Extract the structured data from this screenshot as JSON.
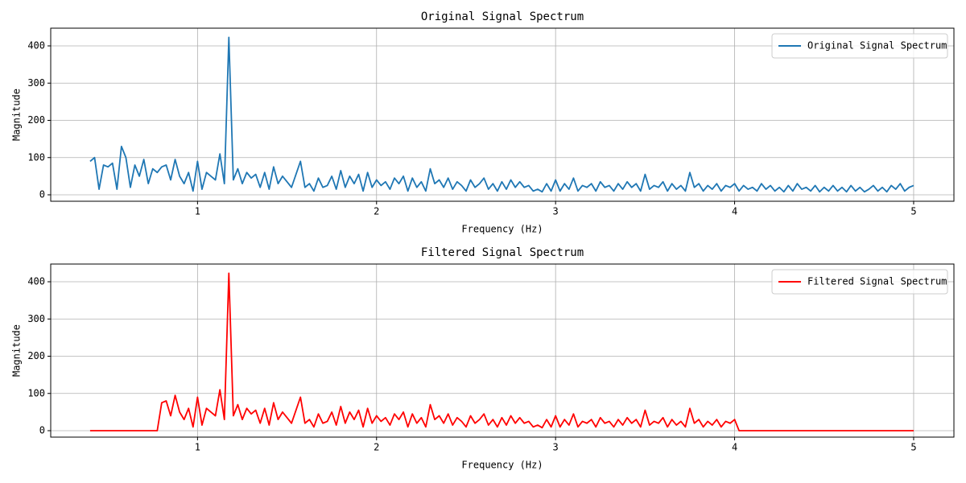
{
  "chart_data": [
    {
      "type": "line",
      "title": "Original Signal Spectrum",
      "xlabel": "Frequency (Hz)",
      "ylabel": "Magnitude",
      "x": [
        0.4,
        0.425,
        0.45,
        0.475,
        0.5,
        0.525,
        0.55,
        0.575,
        0.6,
        0.625,
        0.65,
        0.675,
        0.7,
        0.725,
        0.75,
        0.775,
        0.8,
        0.825,
        0.85,
        0.875,
        0.9,
        0.925,
        0.95,
        0.975,
        1.0,
        1.025,
        1.05,
        1.075,
        1.1,
        1.125,
        1.15,
        1.175,
        1.2,
        1.225,
        1.25,
        1.275,
        1.3,
        1.325,
        1.35,
        1.375,
        1.4,
        1.425,
        1.45,
        1.475,
        1.5,
        1.525,
        1.55,
        1.575,
        1.6,
        1.625,
        1.65,
        1.675,
        1.7,
        1.725,
        1.75,
        1.775,
        1.8,
        1.825,
        1.85,
        1.875,
        1.9,
        1.925,
        1.95,
        1.975,
        2.0,
        2.025,
        2.05,
        2.075,
        2.1,
        2.125,
        2.15,
        2.175,
        2.2,
        2.225,
        2.25,
        2.275,
        2.3,
        2.325,
        2.35,
        2.375,
        2.4,
        2.425,
        2.45,
        2.475,
        2.5,
        2.525,
        2.55,
        2.575,
        2.6,
        2.625,
        2.65,
        2.675,
        2.7,
        2.725,
        2.75,
        2.775,
        2.8,
        2.825,
        2.85,
        2.875,
        2.9,
        2.925,
        2.95,
        2.975,
        3.0,
        3.025,
        3.05,
        3.075,
        3.1,
        3.125,
        3.15,
        3.175,
        3.2,
        3.225,
        3.25,
        3.275,
        3.3,
        3.325,
        3.35,
        3.375,
        3.4,
        3.425,
        3.45,
        3.475,
        3.5,
        3.525,
        3.55,
        3.575,
        3.6,
        3.625,
        3.65,
        3.675,
        3.7,
        3.725,
        3.75,
        3.775,
        3.8,
        3.825,
        3.85,
        3.875,
        3.9,
        3.925,
        3.95,
        3.975,
        4.0,
        4.025,
        4.05,
        4.075,
        4.1,
        4.125,
        4.15,
        4.175,
        4.2,
        4.225,
        4.25,
        4.275,
        4.3,
        4.325,
        4.35,
        4.375,
        4.4,
        4.425,
        4.45,
        4.475,
        4.5,
        4.525,
        4.55,
        4.575,
        4.6,
        4.625,
        4.65,
        4.675,
        4.7,
        4.725,
        4.75,
        4.775,
        4.8,
        4.825,
        4.85,
        4.875,
        4.9,
        4.925,
        4.95,
        4.975,
        5.0
      ],
      "series": [
        {
          "name": "Original Signal Spectrum",
          "color": "#1f77b4",
          "values": [
            90,
            100,
            15,
            80,
            75,
            85,
            15,
            130,
            100,
            20,
            80,
            50,
            95,
            30,
            70,
            60,
            75,
            80,
            40,
            95,
            50,
            30,
            60,
            10,
            90,
            15,
            60,
            50,
            40,
            110,
            30,
            423,
            40,
            70,
            30,
            60,
            45,
            55,
            20,
            60,
            15,
            75,
            30,
            50,
            35,
            20,
            55,
            90,
            20,
            30,
            10,
            45,
            20,
            25,
            50,
            15,
            65,
            20,
            50,
            30,
            55,
            10,
            60,
            20,
            40,
            25,
            35,
            15,
            45,
            30,
            50,
            10,
            45,
            20,
            35,
            10,
            70,
            30,
            40,
            20,
            45,
            15,
            35,
            25,
            10,
            40,
            20,
            30,
            45,
            15,
            30,
            10,
            35,
            15,
            40,
            20,
            35,
            20,
            25,
            10,
            15,
            8,
            30,
            10,
            40,
            10,
            30,
            15,
            45,
            10,
            25,
            20,
            30,
            10,
            35,
            20,
            25,
            10,
            30,
            15,
            35,
            20,
            30,
            10,
            55,
            15,
            25,
            20,
            35,
            10,
            30,
            15,
            25,
            10,
            60,
            20,
            30,
            10,
            25,
            15,
            30,
            10,
            25,
            20,
            30,
            10,
            25,
            15,
            20,
            10,
            30,
            15,
            25,
            10,
            20,
            8,
            25,
            10,
            30,
            15,
            20,
            10,
            25,
            8,
            20,
            10,
            25,
            10,
            20,
            8,
            25,
            10,
            20,
            8,
            15,
            25,
            10,
            20,
            8,
            25,
            15,
            30,
            10,
            20,
            25
          ]
        }
      ],
      "xlim": [
        0.18,
        5.225
      ],
      "ylim": [
        -17.3,
        447.6
      ],
      "xticks": [
        1,
        2,
        3,
        4,
        5
      ],
      "yticks": [
        0,
        100,
        200,
        300,
        400
      ],
      "grid": true,
      "legend": "upper right"
    },
    {
      "type": "line",
      "title": "Filtered Signal Spectrum",
      "xlabel": "Frequency (Hz)",
      "ylabel": "Magnitude",
      "x": [
        0.4,
        0.425,
        0.45,
        0.475,
        0.5,
        0.525,
        0.55,
        0.575,
        0.6,
        0.625,
        0.65,
        0.675,
        0.7,
        0.725,
        0.75,
        0.775,
        0.8,
        0.825,
        0.85,
        0.875,
        0.9,
        0.925,
        0.95,
        0.975,
        1.0,
        1.025,
        1.05,
        1.075,
        1.1,
        1.125,
        1.15,
        1.175,
        1.2,
        1.225,
        1.25,
        1.275,
        1.3,
        1.325,
        1.35,
        1.375,
        1.4,
        1.425,
        1.45,
        1.475,
        1.5,
        1.525,
        1.55,
        1.575,
        1.6,
        1.625,
        1.65,
        1.675,
        1.7,
        1.725,
        1.75,
        1.775,
        1.8,
        1.825,
        1.85,
        1.875,
        1.9,
        1.925,
        1.95,
        1.975,
        2.0,
        2.025,
        2.05,
        2.075,
        2.1,
        2.125,
        2.15,
        2.175,
        2.2,
        2.225,
        2.25,
        2.275,
        2.3,
        2.325,
        2.35,
        2.375,
        2.4,
        2.425,
        2.45,
        2.475,
        2.5,
        2.525,
        2.55,
        2.575,
        2.6,
        2.625,
        2.65,
        2.675,
        2.7,
        2.725,
        2.75,
        2.775,
        2.8,
        2.825,
        2.85,
        2.875,
        2.9,
        2.925,
        2.95,
        2.975,
        3.0,
        3.025,
        3.05,
        3.075,
        3.1,
        3.125,
        3.15,
        3.175,
        3.2,
        3.225,
        3.25,
        3.275,
        3.3,
        3.325,
        3.35,
        3.375,
        3.4,
        3.425,
        3.45,
        3.475,
        3.5,
        3.525,
        3.55,
        3.575,
        3.6,
        3.625,
        3.65,
        3.675,
        3.7,
        3.725,
        3.75,
        3.775,
        3.8,
        3.825,
        3.85,
        3.875,
        3.9,
        3.925,
        3.95,
        3.975,
        4.0,
        4.025,
        4.05,
        4.075,
        4.1,
        4.125,
        4.15,
        4.175,
        4.2,
        4.225,
        4.25,
        4.275,
        4.3,
        4.325,
        4.35,
        4.375,
        4.4,
        4.425,
        4.45,
        4.475,
        4.5,
        4.525,
        4.55,
        4.575,
        4.6,
        4.625,
        4.65,
        4.675,
        4.7,
        4.725,
        4.75,
        4.775,
        4.8,
        4.825,
        4.85,
        4.875,
        4.9,
        4.925,
        4.95,
        4.975,
        5.0
      ],
      "series": [
        {
          "name": "Filtered Signal Spectrum",
          "color": "#ff0000",
          "values": [
            0,
            0,
            0,
            0,
            0,
            0,
            0,
            0,
            0,
            0,
            0,
            0,
            0,
            0,
            0,
            0,
            75,
            80,
            40,
            95,
            50,
            30,
            60,
            10,
            90,
            15,
            60,
            50,
            40,
            110,
            30,
            423,
            40,
            70,
            30,
            60,
            45,
            55,
            20,
            60,
            15,
            75,
            30,
            50,
            35,
            20,
            55,
            90,
            20,
            30,
            10,
            45,
            20,
            25,
            50,
            15,
            65,
            20,
            50,
            30,
            55,
            10,
            60,
            20,
            40,
            25,
            35,
            15,
            45,
            30,
            50,
            10,
            45,
            20,
            35,
            10,
            70,
            30,
            40,
            20,
            45,
            15,
            35,
            25,
            10,
            40,
            20,
            30,
            45,
            15,
            30,
            10,
            35,
            15,
            40,
            20,
            35,
            20,
            25,
            10,
            15,
            8,
            30,
            10,
            40,
            10,
            30,
            15,
            45,
            10,
            25,
            20,
            30,
            10,
            35,
            20,
            25,
            10,
            30,
            15,
            35,
            20,
            30,
            10,
            55,
            15,
            25,
            20,
            35,
            10,
            30,
            15,
            25,
            10,
            60,
            20,
            30,
            10,
            25,
            15,
            30,
            10,
            25,
            20,
            30,
            0,
            0,
            0,
            0,
            0,
            0,
            0,
            0,
            0,
            0,
            0,
            0,
            0,
            0,
            0,
            0,
            0,
            0,
            0,
            0,
            0,
            0,
            0,
            0,
            0,
            0,
            0,
            0,
            0,
            0,
            0,
            0,
            0,
            0,
            0,
            0,
            0,
            0,
            0,
            0
          ]
        }
      ],
      "xlim": [
        0.18,
        5.225
      ],
      "ylim": [
        -17.3,
        447.6
      ],
      "xticks": [
        1,
        2,
        3,
        4,
        5
      ],
      "yticks": [
        0,
        100,
        200,
        300,
        400
      ],
      "grid": true,
      "legend": "upper right"
    }
  ]
}
